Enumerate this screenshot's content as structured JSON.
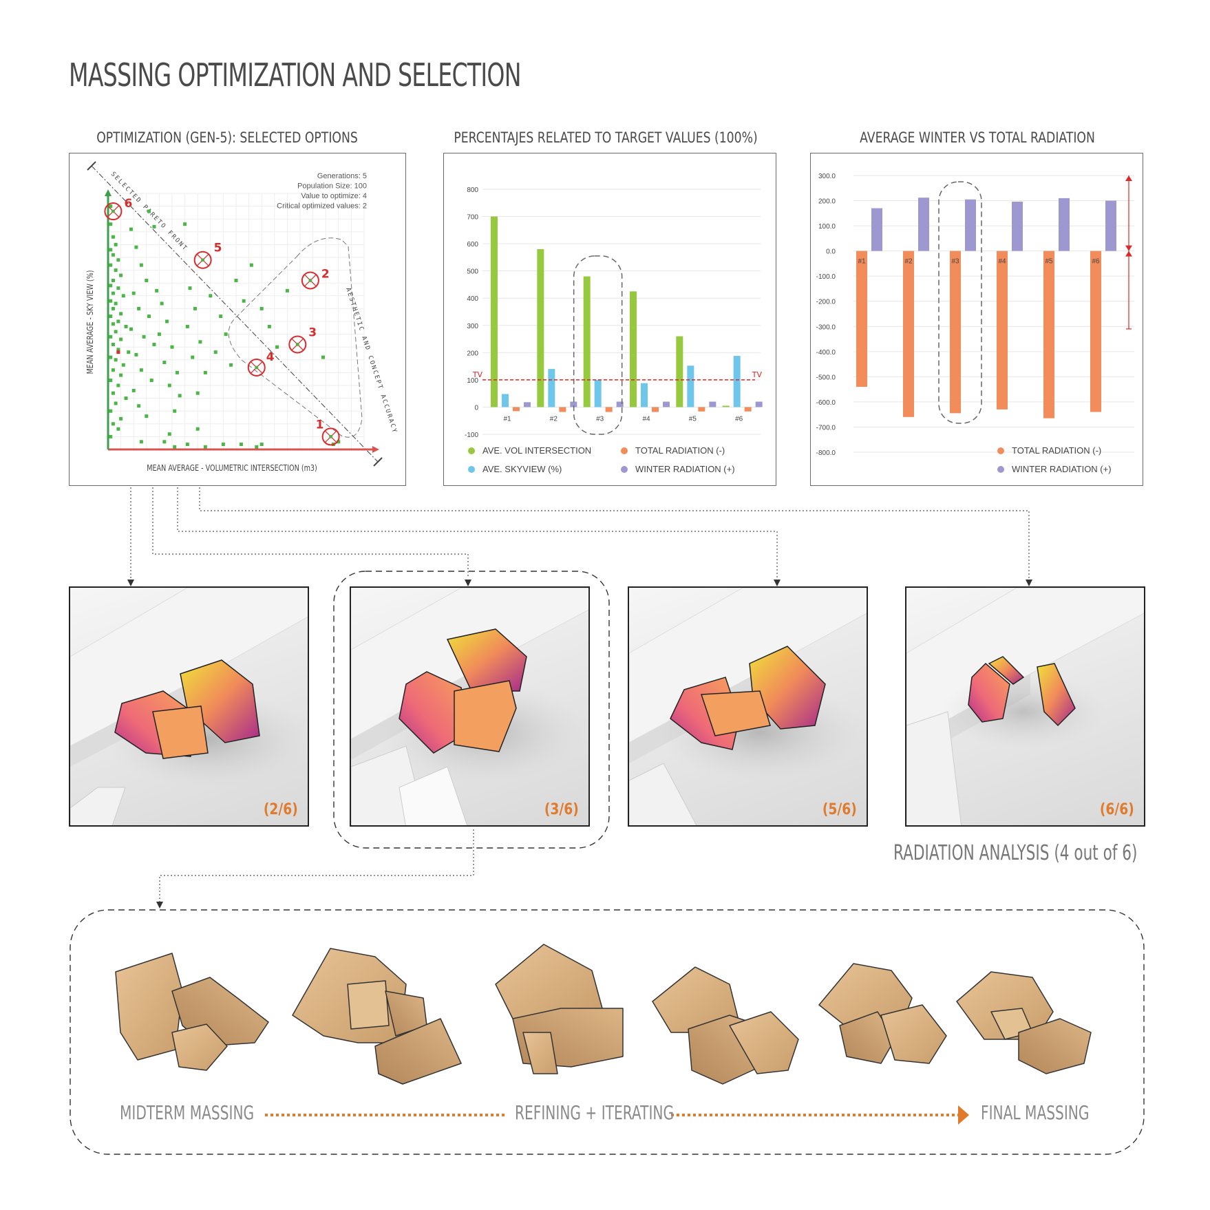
{
  "title": "MASSING OPTIMIZATION AND SELECTION",
  "panels": {
    "scatter": {
      "title": "OPTIMIZATION (GEN-5): SELECTED OPTIONS",
      "info": [
        "Generations: 5",
        "Population Size: 100",
        "Value to optimize: 4",
        "Critical optimized values: 2"
      ],
      "xlabel": "MEAN AVERAGE - VOLUMETRIC INTERSECTION (m3)",
      "ylabel": "MEAN AVERAGE - SKY VIEW (%)",
      "pareto_label": "SELECTED PARETO FRONT",
      "accuracy_label": "AESTHETIC AND CONCEPT ACCURACY",
      "option_labels": [
        "1",
        "2",
        "3",
        "4",
        "5",
        "6"
      ]
    },
    "percent": {
      "title": "PERCENTAJES RELATED TO TARGET VALUES (100%)"
    },
    "radiation": {
      "title": "AVERAGE WINTER VS TOTAL RADIATION"
    }
  },
  "chart_data": [
    {
      "type": "scatter",
      "title": "OPTIMIZATION (GEN-5): SELECTED OPTIONS",
      "xlabel": "MEAN AVERAGE - VOLUMETRIC INTERSECTION (m3)",
      "ylabel": "MEAN AVERAGE - SKY VIEW (%)",
      "grid": true,
      "colors": {
        "population": "#4cb548",
        "selected": "#d92b2b",
        "x_axis": "#d9534f",
        "y_axis": "#3aa04a"
      },
      "selected": [
        {
          "label": "1",
          "x": 0.87,
          "y": 0.05
        },
        {
          "label": "2",
          "x": 0.79,
          "y": 0.66
        },
        {
          "label": "3",
          "x": 0.74,
          "y": 0.41
        },
        {
          "label": "4",
          "x": 0.58,
          "y": 0.32
        },
        {
          "label": "5",
          "x": 0.37,
          "y": 0.74
        },
        {
          "label": "6",
          "x": 0.02,
          "y": 0.93
        }
      ],
      "population": [
        [
          0.01,
          0.95
        ],
        [
          0.01,
          0.88
        ],
        [
          0.02,
          0.83
        ],
        [
          0.03,
          0.8
        ],
        [
          0.01,
          0.78
        ],
        [
          0.02,
          0.76
        ],
        [
          0.04,
          0.74
        ],
        [
          0.01,
          0.72
        ],
        [
          0.03,
          0.7
        ],
        [
          0.05,
          0.68
        ],
        [
          0.02,
          0.66
        ],
        [
          0.01,
          0.64
        ],
        [
          0.04,
          0.63
        ],
        [
          0.02,
          0.61
        ],
        [
          0.06,
          0.6
        ],
        [
          0.01,
          0.58
        ],
        [
          0.03,
          0.57
        ],
        [
          0.02,
          0.55
        ],
        [
          0.05,
          0.53
        ],
        [
          0.01,
          0.52
        ],
        [
          0.04,
          0.5
        ],
        [
          0.02,
          0.49
        ],
        [
          0.07,
          0.48
        ],
        [
          0.03,
          0.46
        ],
        [
          0.01,
          0.44
        ],
        [
          0.05,
          0.43
        ],
        [
          0.02,
          0.41
        ],
        [
          0.04,
          0.39
        ],
        [
          0.08,
          0.38
        ],
        [
          0.01,
          0.36
        ],
        [
          0.03,
          0.35
        ],
        [
          0.06,
          0.33
        ],
        [
          0.02,
          0.31
        ],
        [
          0.05,
          0.29
        ],
        [
          0.01,
          0.27
        ],
        [
          0.04,
          0.25
        ],
        [
          0.02,
          0.22
        ],
        [
          0.07,
          0.2
        ],
        [
          0.03,
          0.18
        ],
        [
          0.01,
          0.15
        ],
        [
          0.05,
          0.12
        ],
        [
          0.02,
          0.1
        ],
        [
          0.04,
          0.08
        ],
        [
          0.01,
          0.05
        ],
        [
          0.09,
          0.86
        ],
        [
          0.11,
          0.79
        ],
        [
          0.13,
          0.72
        ],
        [
          0.15,
          0.66
        ],
        [
          0.1,
          0.61
        ],
        [
          0.12,
          0.55
        ],
        [
          0.16,
          0.52
        ],
        [
          0.09,
          0.47
        ],
        [
          0.14,
          0.44
        ],
        [
          0.18,
          0.41
        ],
        [
          0.11,
          0.37
        ],
        [
          0.13,
          0.31
        ],
        [
          0.17,
          0.27
        ],
        [
          0.1,
          0.23
        ],
        [
          0.12,
          0.17
        ],
        [
          0.15,
          0.13
        ],
        [
          0.19,
          0.62
        ],
        [
          0.21,
          0.57
        ],
        [
          0.23,
          0.5
        ],
        [
          0.2,
          0.45
        ],
        [
          0.25,
          0.4
        ],
        [
          0.22,
          0.34
        ],
        [
          0.27,
          0.3
        ],
        [
          0.24,
          0.25
        ],
        [
          0.28,
          0.21
        ],
        [
          0.26,
          0.15
        ],
        [
          0.3,
          0.88
        ],
        [
          0.32,
          0.63
        ],
        [
          0.34,
          0.55
        ],
        [
          0.31,
          0.48
        ],
        [
          0.36,
          0.42
        ],
        [
          0.33,
          0.36
        ],
        [
          0.38,
          0.3
        ],
        [
          0.35,
          0.22
        ],
        [
          0.4,
          0.6
        ],
        [
          0.44,
          0.52
        ],
        [
          0.46,
          0.45
        ],
        [
          0.42,
          0.38
        ],
        [
          0.48,
          0.33
        ],
        [
          0.5,
          0.66
        ],
        [
          0.53,
          0.58
        ],
        [
          0.56,
          0.72
        ],
        [
          0.6,
          0.55
        ],
        [
          0.63,
          0.48
        ],
        [
          0.66,
          0.4
        ],
        [
          0.7,
          0.62
        ],
        [
          0.52,
          0.02
        ],
        [
          0.6,
          0.02
        ],
        [
          0.88,
          0.02
        ],
        [
          0.22,
          0.03
        ],
        [
          0.24,
          0.06
        ],
        [
          0.26,
          0.01
        ],
        [
          0.31,
          0.02
        ],
        [
          0.38,
          0.01
        ],
        [
          0.45,
          0.02
        ],
        [
          0.58,
          0.01
        ],
        [
          0.13,
          0.03
        ],
        [
          0.35,
          0.08
        ],
        [
          0.84,
          0.36
        ],
        [
          0.9,
          0.03
        ],
        [
          0.16,
          0.93
        ],
        [
          0.18,
          0.87
        ]
      ],
      "outliers_red": [
        [
          0.04,
          0.38
        ]
      ]
    },
    {
      "type": "bar",
      "title": "PERCENTAJES RELATED TO TARGET VALUES (100%)",
      "categories": [
        "#1",
        "#2",
        "#3",
        "#4",
        "#5",
        "#6"
      ],
      "ylim": [
        -100,
        800
      ],
      "yticks": [
        -100,
        0,
        100,
        200,
        300,
        400,
        500,
        600,
        700,
        800
      ],
      "target": {
        "label": "TV",
        "value": 100,
        "color": "#e02424"
      },
      "highlight": "#3",
      "series": [
        {
          "name": "AVE. VOL INTERSECTION",
          "color": "#96c93d",
          "values": [
            700,
            580,
            480,
            425,
            260,
            5
          ]
        },
        {
          "name": "AVE. SKYVIEW (%)",
          "color": "#6ec6ea",
          "values": [
            48,
            140,
            100,
            88,
            152,
            188
          ]
        },
        {
          "name": "TOTAL RADIATION (-)",
          "color": "#f28c5a",
          "values": [
            -15,
            -18,
            -18,
            -18,
            -16,
            -16
          ]
        },
        {
          "name": "WINTER RADIATION (+)",
          "color": "#9d98d0",
          "values": [
            18,
            20,
            20,
            20,
            20,
            20
          ]
        }
      ]
    },
    {
      "type": "bar",
      "title": "AVERAGE WINTER VS TOTAL RADIATION",
      "categories": [
        "#1",
        "#2",
        "#3",
        "#4",
        "#5",
        "#6"
      ],
      "ylim": [
        -800,
        300
      ],
      "yticks": [
        "300.0",
        "200.0",
        "100.0",
        "0.0",
        "-100.0",
        "-200.0",
        "-300.0",
        "-400.0",
        "-500.0",
        "-600.0",
        "-700.0",
        "-800.0"
      ],
      "highlight": "#3",
      "series": [
        {
          "name": "TOTAL RADIATION (-)",
          "color": "#f28c5a",
          "values": [
            -540,
            -660,
            -645,
            -630,
            -665,
            -640
          ]
        },
        {
          "name": "WINTER RADIATION (+)",
          "color": "#9d98d0",
          "values": [
            170,
            212,
            205,
            196,
            210,
            200
          ]
        }
      ]
    }
  ],
  "renders": [
    {
      "label": "(2/6)"
    },
    {
      "label": "(3/6)"
    },
    {
      "label": "(5/6)"
    },
    {
      "label": "(6/6)"
    }
  ],
  "radiation_caption": "RADIATION ANALYSIS (4 out of 6)",
  "steps": {
    "start": "MIDTERM MASSING",
    "middle": "REFINING + ITERATING",
    "end": "FINAL MASSING"
  },
  "colors": {
    "accent": "#e07a2d",
    "massing_wood": "#e2bd8f",
    "gradient_hot": "#f0e23a",
    "gradient_mid": "#f08a5a",
    "gradient_cold": "#a52a8c"
  }
}
